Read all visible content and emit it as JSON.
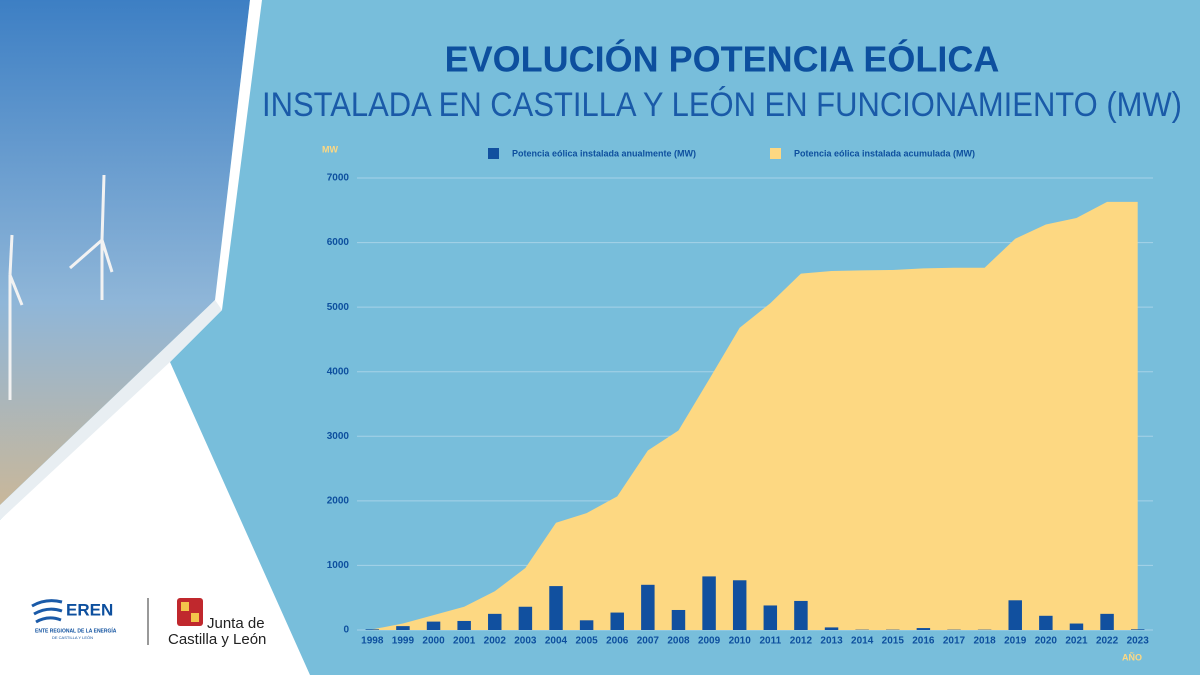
{
  "header": {
    "title": "EVOLUCIÓN POTENCIA EÓLICA",
    "subtitle": "INSTALADA EN CASTILLA Y LEÓN EN FUNCIONAMIENTO (MW)"
  },
  "logos": {
    "eren": "EREN",
    "eren_line1": "ENTE REGIONAL DE LA ENERGÍA",
    "eren_line2": "DE CASTILLA Y LEÓN",
    "junta_line1": "Junta de",
    "junta_line2": "Castilla y León"
  },
  "chart_data": {
    "type": "bar",
    "y_label": "MW",
    "x_label": "AÑO",
    "categories": [
      "1998",
      "1999",
      "2000",
      "2001",
      "2002",
      "2003",
      "2004",
      "2005",
      "2006",
      "2007",
      "2008",
      "2009",
      "2010",
      "2011",
      "2012",
      "2013",
      "2014",
      "2015",
      "2016",
      "2017",
      "2018",
      "2019",
      "2020",
      "2021",
      "2022",
      "2023"
    ],
    "series": [
      {
        "name": "Potencia eólica instalada anualmente (MW)",
        "type": "bar",
        "color": "#11509f",
        "values": [
          10,
          60,
          130,
          140,
          250,
          360,
          680,
          150,
          270,
          700,
          310,
          830,
          770,
          380,
          450,
          40,
          5,
          5,
          30,
          5,
          5,
          460,
          220,
          100,
          250,
          10
        ]
      },
      {
        "name": "Potencia eólica instalada acumulada (MW)",
        "type": "area",
        "color": "#fdd882",
        "values": [
          10,
          100,
          230,
          360,
          600,
          960,
          1660,
          1810,
          2070,
          2780,
          3090,
          3880,
          4680,
          5060,
          5520,
          5560,
          5570,
          5575,
          5600,
          5610,
          5610,
          6060,
          6280,
          6380,
          6630,
          6630
        ]
      }
    ],
    "ylim": [
      0,
      7000
    ],
    "yticks": [
      0,
      1000,
      2000,
      3000,
      4000,
      5000,
      6000,
      7000
    ],
    "grid": true
  }
}
